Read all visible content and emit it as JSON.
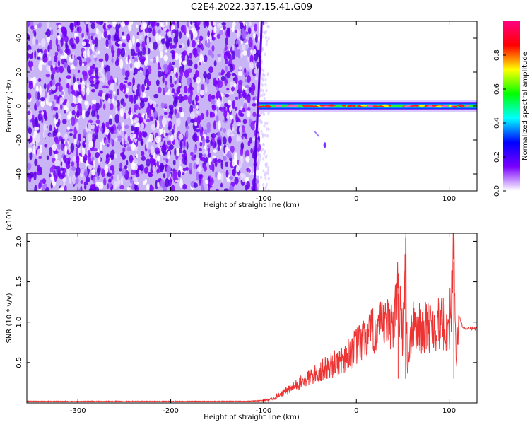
{
  "title": "C2E4.2022.337.15.41.G09",
  "chart_data": [
    {
      "type": "heatmap",
      "xlabel": "Height of straight line (km)",
      "ylabel": "Frequency (Hz)",
      "xlim": [
        -355,
        130
      ],
      "ylim": [
        -50,
        50
      ],
      "xticks": [
        -300,
        -200,
        -100,
        0,
        100
      ],
      "yticks": [
        -40,
        -20,
        0,
        20,
        40
      ],
      "colorbar": {
        "label": "Normalized spectral amplitude",
        "range": [
          0,
          1
        ],
        "ticks": [
          "0.0",
          "0.2",
          "0.4",
          "0.6",
          "0.8"
        ],
        "tick_values": [
          0.0,
          0.2,
          0.4,
          0.6,
          0.8
        ],
        "colormap": [
          "#ffffff",
          "#7a00ff",
          "#0000ff",
          "#00ffff",
          "#00ff00",
          "#ffff00",
          "#ff0000",
          "#ff0080"
        ]
      },
      "features": {
        "noise_region_x": [
          -355,
          -105
        ],
        "noise_intensity": 0.05,
        "signal_line": {
          "x_start": -105,
          "x_end": 130,
          "frequency": 0
        },
        "boundary_streak": {
          "x_start": -110,
          "x_end": -102,
          "freq_range": [
            -50,
            50
          ]
        }
      }
    },
    {
      "type": "line",
      "xlabel": "Height of straight line (km)",
      "ylabel": "SNR (10 * v/v)",
      "y_multiplier": "(x10⁴)",
      "xlim": [
        -355,
        130
      ],
      "ylim": [
        0,
        2.1
      ],
      "xticks": [
        -300,
        -200,
        -100,
        0,
        100
      ],
      "yticks": [
        "0.5",
        "1.0",
        "1.5",
        "2.0"
      ],
      "ytick_values": [
        0.5,
        1.0,
        1.5,
        2.0
      ],
      "series": [
        {
          "color": "#ee3333",
          "x": [
            -355,
            -300,
            -250,
            -200,
            -150,
            -120,
            -100,
            -90,
            -80,
            -70,
            -60,
            -50,
            -40,
            -30,
            -20,
            -10,
            0,
            10,
            20,
            30,
            40,
            45,
            50,
            53,
            55,
            60,
            70,
            80,
            90,
            100,
            105,
            108,
            110,
            115,
            120,
            130
          ],
          "y": [
            0.02,
            0.02,
            0.02,
            0.02,
            0.02,
            0.02,
            0.03,
            0.05,
            0.12,
            0.18,
            0.25,
            0.32,
            0.38,
            0.45,
            0.5,
            0.58,
            0.7,
            0.8,
            0.9,
            0.95,
            1.0,
            1.35,
            0.85,
            2.05,
            0.4,
            0.95,
            0.92,
            0.95,
            0.98,
            0.93,
            1.75,
            0.4,
            1.1,
            0.92,
            0.92,
            0.92
          ]
        }
      ]
    }
  ]
}
